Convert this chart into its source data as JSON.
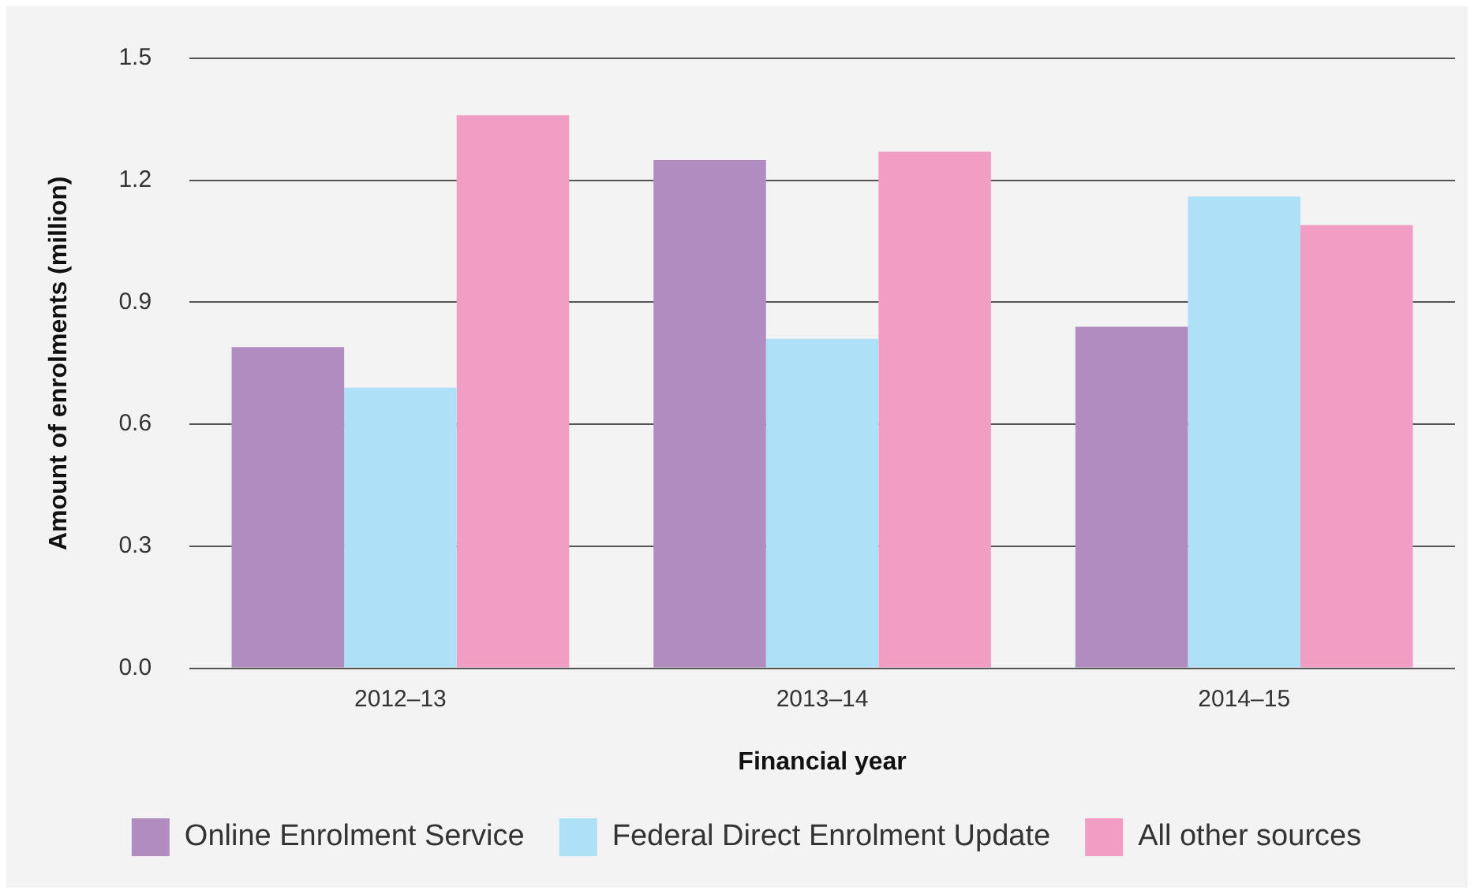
{
  "chart_data": {
    "type": "bar",
    "xlabel": "Financial year",
    "ylabel": "Amount of enrolments (million)",
    "categories": [
      "2012–13",
      "2013–14",
      "2014–15"
    ],
    "series": [
      {
        "name": "Online Enrolment Service",
        "color": "#b08cc0",
        "values": [
          0.79,
          1.25,
          0.84
        ]
      },
      {
        "name": "Federal Direct Enrolment Update",
        "color": "#aee0f8",
        "values": [
          0.69,
          0.81,
          1.16
        ]
      },
      {
        "name": "All other sources",
        "color": "#f29ec4",
        "values": [
          1.36,
          1.27,
          1.09
        ]
      }
    ],
    "ylim": [
      0,
      1.5
    ],
    "yticks": [
      {
        "value": 0,
        "label": "0.0"
      },
      0.3,
      0.6,
      0.9,
      1.2,
      1.5
    ],
    "grid": "y",
    "legend": "bottom"
  }
}
